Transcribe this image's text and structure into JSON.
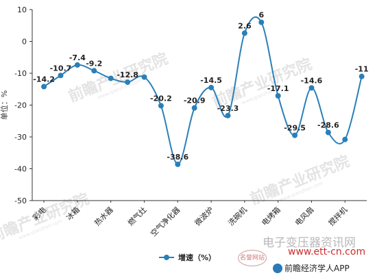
{
  "chart_data": {
    "type": "line",
    "title": "",
    "xlabel": "",
    "ylabel": "单位：%",
    "ylim": [
      -50,
      10
    ],
    "yticks": [
      10,
      0,
      -10,
      -20,
      -30,
      -40,
      -50
    ],
    "category_labels": [
      "彩电",
      "冰箱",
      "热水器",
      "燃气灶",
      "空气净化器",
      "微波炉",
      "洗碗机",
      "电烤箱",
      "电风扇",
      "搅拌机"
    ],
    "x": [
      0,
      0.5,
      1,
      1.5,
      2,
      2.5,
      3,
      3.5,
      4,
      4.5,
      5,
      5.5,
      6,
      6.5,
      7,
      7.5,
      8,
      8.5,
      9,
      9.5
    ],
    "series": [
      {
        "name": "增速（%）",
        "color": "#2a7fb8",
        "values": [
          -14.2,
          -10.7,
          -7.4,
          -9.2,
          -11.6,
          -12.8,
          -11.2,
          -20.2,
          -38.6,
          -20.9,
          -14.5,
          -23.3,
          2.6,
          6,
          -17.1,
          -29.5,
          -14.6,
          -28.6,
          -30.8,
          -11
        ],
        "labels": [
          "-14.2",
          "-10.7",
          "-7.4",
          "-9.2",
          "",
          "-12.8",
          "",
          "-20.2",
          "-38.6",
          "-20.9",
          "-14.5",
          "-23.3",
          "2.6",
          "6",
          "-17.1",
          "-29.5",
          "-14.6",
          "-28.6",
          "",
          "-11"
        ]
      }
    ],
    "grid": false,
    "legend_position": "bottom"
  },
  "watermark": {
    "text_main": "前瞻产业研究院",
    "text_sub": "www.qianzhan.com",
    "site_name": "电子变压器资讯网",
    "site_url": "www.ett-cn.com",
    "badge": "前瞻经济学人APP",
    "seal": "名誉网站"
  }
}
